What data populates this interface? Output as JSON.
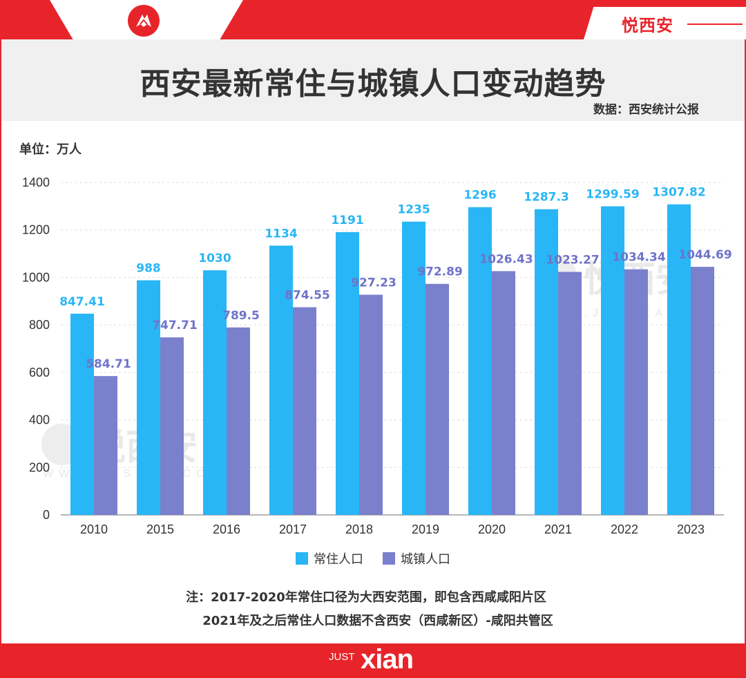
{
  "brand": {
    "name": "悦西安",
    "logo_icon": "yuexian-logo-icon",
    "footer_prefix": "JUST",
    "footer_name": "xian"
  },
  "header": {
    "title": "西安最新常住与城镇人口变动趋势",
    "source": "数据：西安统计公报"
  },
  "unit_label": "单位：万人",
  "watermark": {
    "text": "悦西安",
    "url": "WWW.JUSTXA.COM"
  },
  "colors": {
    "accent_red": "#e8242b",
    "series_a": "#29b6f6",
    "series_b": "#7a80cc"
  },
  "chart_data": {
    "type": "bar",
    "categories": [
      "2010",
      "2015",
      "2016",
      "2017",
      "2018",
      "2019",
      "2020",
      "2021",
      "2022",
      "2023"
    ],
    "series": [
      {
        "name": "常住人口",
        "values": [
          847.41,
          988,
          1030,
          1134,
          1191,
          1235,
          1296,
          1287.3,
          1299.59,
          1307.82
        ],
        "labels": [
          "847.41",
          "988",
          "1030",
          "1134",
          "1191",
          "1235",
          "1296",
          "1287.3",
          "1299.59",
          "1307.82"
        ]
      },
      {
        "name": "城镇人口",
        "values": [
          584.71,
          747.71,
          789.5,
          874.55,
          927.23,
          972.89,
          1026.43,
          1023.27,
          1034.34,
          1044.69
        ],
        "labels": [
          "584.71",
          "747.71",
          "789.5",
          "874.55",
          "927.23",
          "972.89",
          "1026.43",
          "1023.27",
          "1034.34",
          "1044.69"
        ]
      }
    ],
    "ylim": [
      0,
      1400
    ],
    "yticks": [
      "0",
      "200",
      "400",
      "600",
      "800",
      "1000",
      "1200",
      "1400"
    ],
    "grid": true,
    "legend": "bottom-center"
  },
  "notes": [
    "注：2017-2020年常住口径为大西安范围，即包含西咸咸阳片区",
    "2021年及之后常住人口数据不含西安（西咸新区）-咸阳共管区"
  ]
}
